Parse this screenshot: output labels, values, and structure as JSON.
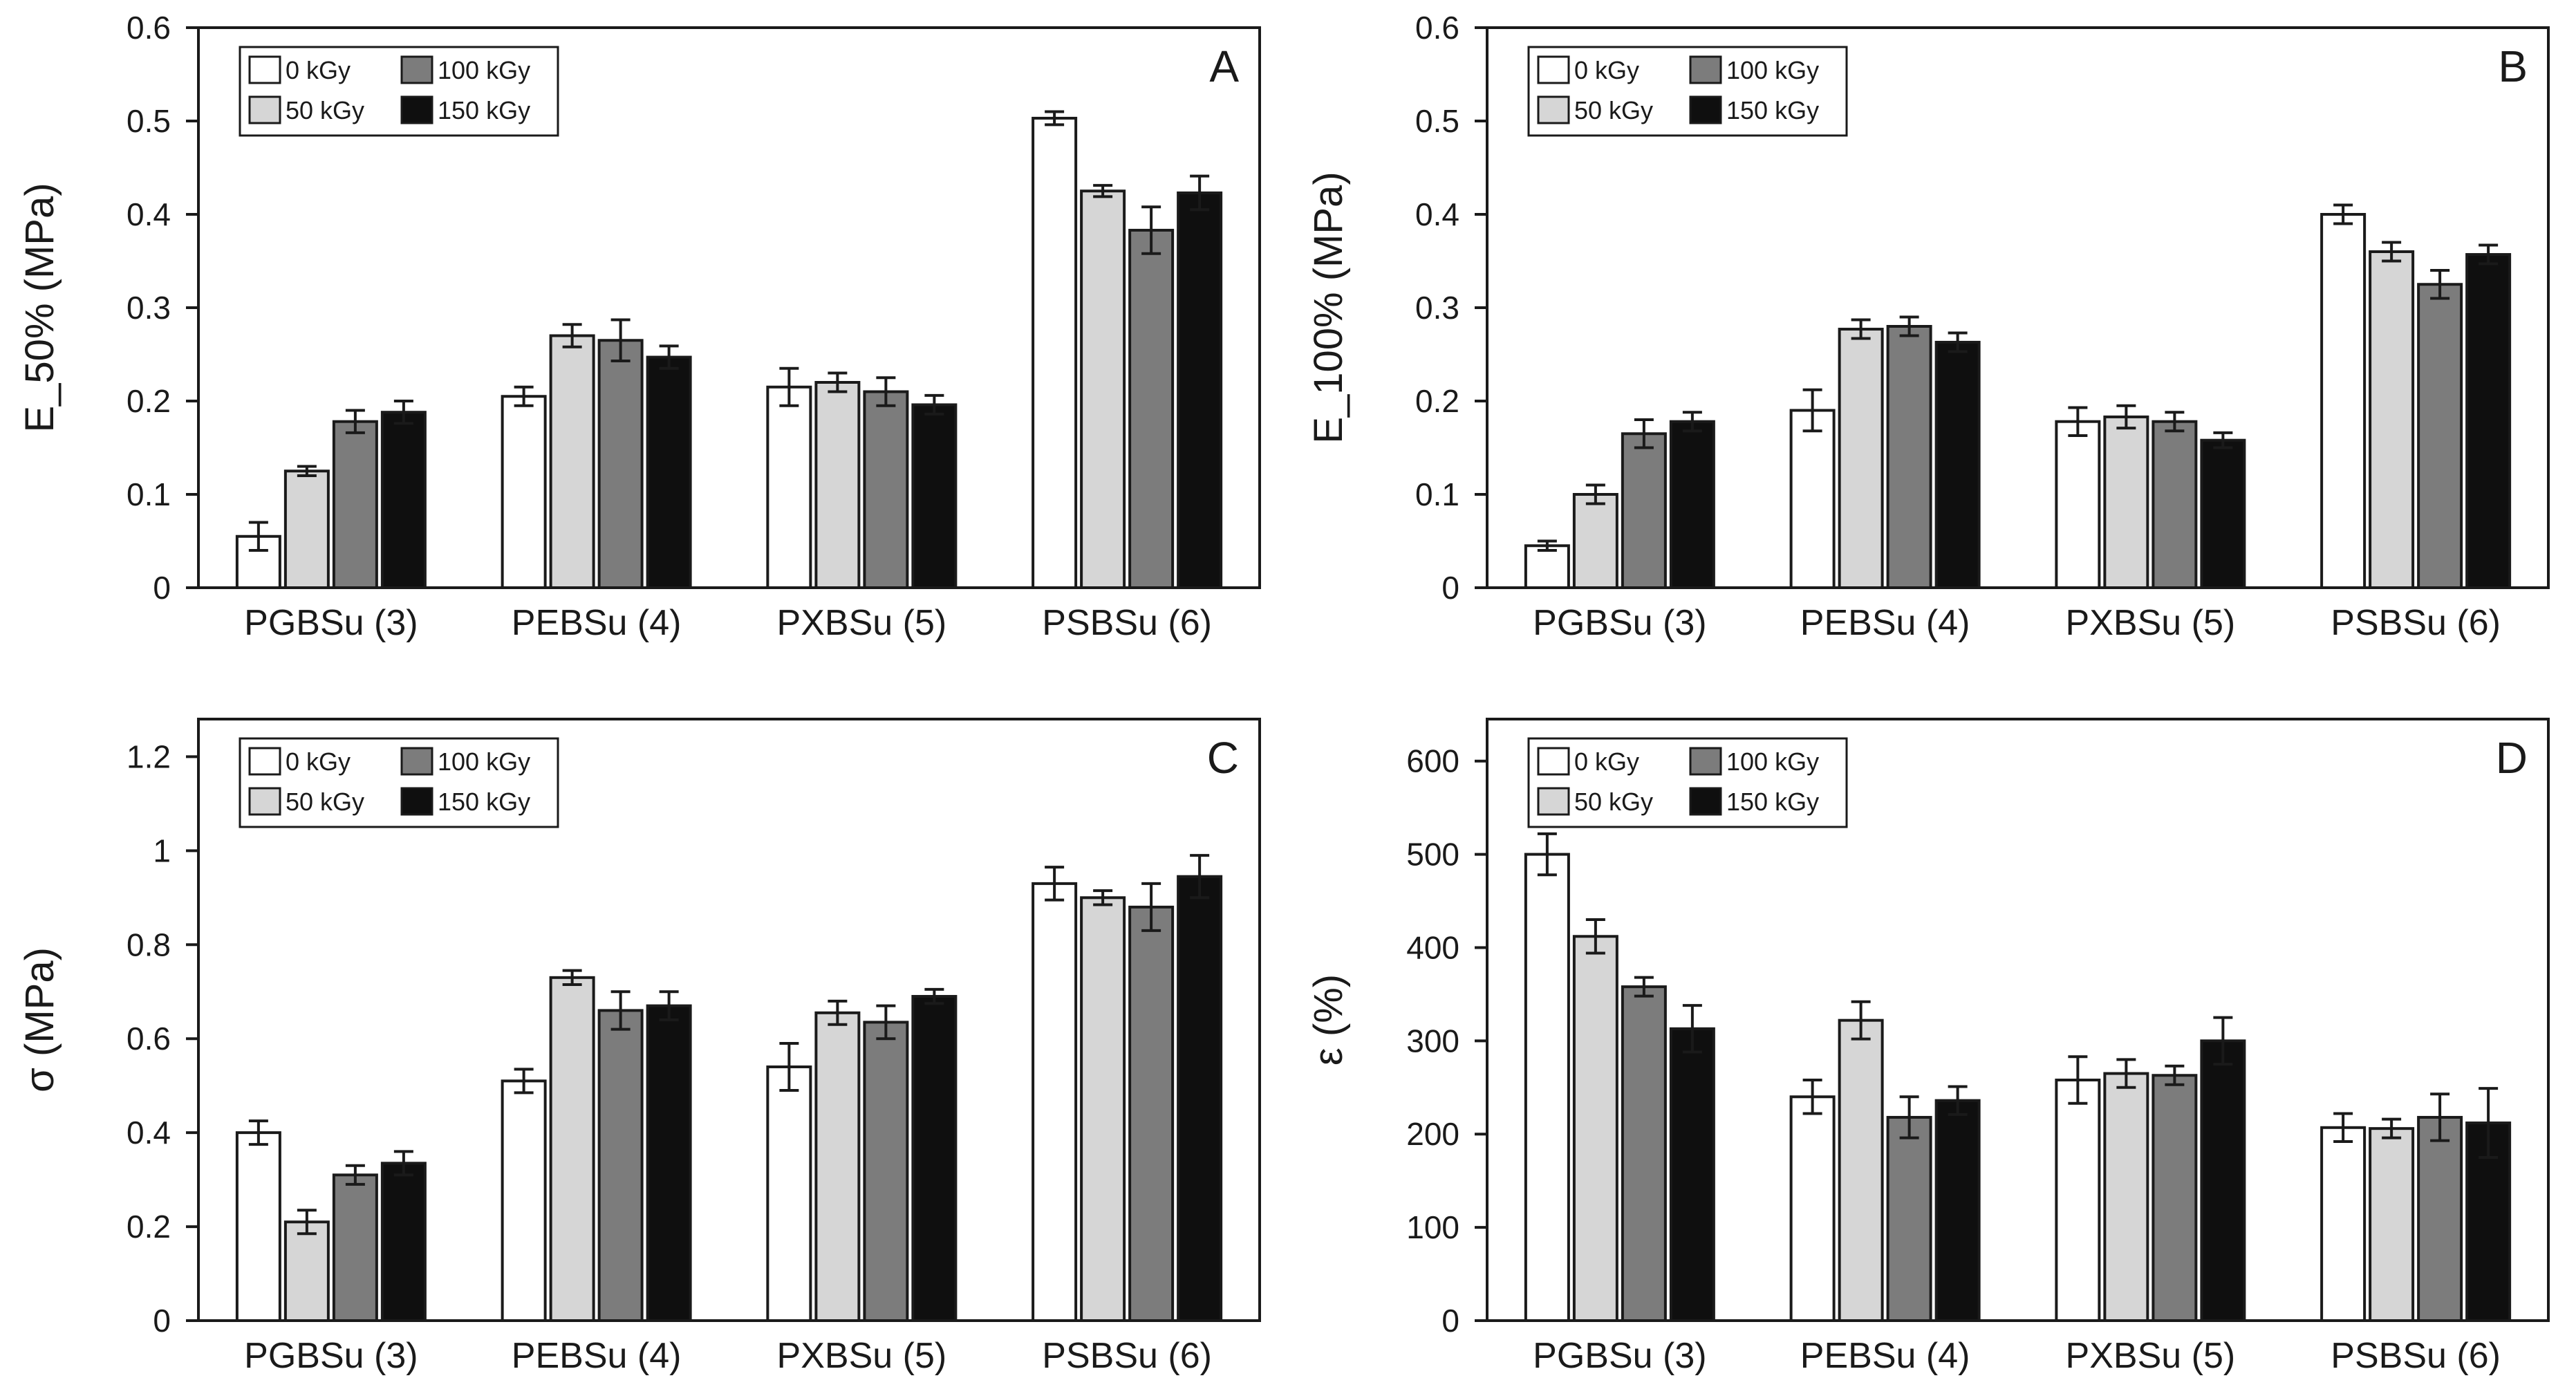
{
  "chart_data": [
    {
      "panel": "A",
      "type": "bar",
      "ylabel": "E_50% (MPa)",
      "xlabel": "",
      "ylim": [
        0,
        0.6
      ],
      "yticks": [
        0,
        0.1,
        0.2,
        0.3,
        0.4,
        0.5,
        0.6
      ],
      "ytick_labels": [
        "0",
        "0.1",
        "0.2",
        "0.3",
        "0.4",
        "0.5",
        "0.6"
      ],
      "categories": [
        "PGBSu (3)",
        "PEBSu (4)",
        "PXBSu (5)",
        "PSBSu (6)"
      ],
      "legend": "top-left",
      "series": [
        {
          "name": "0 kGy",
          "color": "#ffffff",
          "values": [
            0.055,
            0.205,
            0.215,
            0.503
          ],
          "errors": [
            0.015,
            0.01,
            0.02,
            0.007
          ]
        },
        {
          "name": "50 kGy",
          "color": "#d6d6d6",
          "values": [
            0.125,
            0.27,
            0.22,
            0.425
          ],
          "errors": [
            0.005,
            0.012,
            0.01,
            0.006
          ]
        },
        {
          "name": "100 kGy",
          "color": "#7c7c7c",
          "values": [
            0.178,
            0.265,
            0.21,
            0.383
          ],
          "errors": [
            0.012,
            0.022,
            0.015,
            0.025
          ]
        },
        {
          "name": "150 kGy",
          "color": "#0f0f0f",
          "values": [
            0.188,
            0.247,
            0.196,
            0.423
          ],
          "errors": [
            0.012,
            0.012,
            0.01,
            0.018
          ]
        }
      ]
    },
    {
      "panel": "B",
      "type": "bar",
      "ylabel": "E_100% (MPa)",
      "xlabel": "",
      "ylim": [
        0,
        0.6
      ],
      "yticks": [
        0,
        0.1,
        0.2,
        0.3,
        0.4,
        0.5,
        0.6
      ],
      "ytick_labels": [
        "0",
        "0.1",
        "0.2",
        "0.3",
        "0.4",
        "0.5",
        "0.6"
      ],
      "categories": [
        "PGBSu (3)",
        "PEBSu (4)",
        "PXBSu (5)",
        "PSBSu (6)"
      ],
      "legend": "top-left",
      "series": [
        {
          "name": "0 kGy",
          "color": "#ffffff",
          "values": [
            0.045,
            0.19,
            0.178,
            0.4
          ],
          "errors": [
            0.005,
            0.022,
            0.015,
            0.01
          ]
        },
        {
          "name": "50 kGy",
          "color": "#d6d6d6",
          "values": [
            0.1,
            0.277,
            0.183,
            0.36
          ],
          "errors": [
            0.01,
            0.01,
            0.012,
            0.01
          ]
        },
        {
          "name": "100 kGy",
          "color": "#7c7c7c",
          "values": [
            0.165,
            0.28,
            0.178,
            0.325
          ],
          "errors": [
            0.015,
            0.01,
            0.01,
            0.015
          ]
        },
        {
          "name": "150 kGy",
          "color": "#0f0f0f",
          "values": [
            0.178,
            0.263,
            0.158,
            0.357
          ],
          "errors": [
            0.01,
            0.01,
            0.008,
            0.01
          ]
        }
      ]
    },
    {
      "panel": "C",
      "type": "bar",
      "ylabel": "σ (MPa)",
      "xlabel": "",
      "ylim": [
        0,
        1.28
      ],
      "yticks": [
        0,
        0.2,
        0.4,
        0.6,
        0.8,
        1.0,
        1.2
      ],
      "ytick_labels": [
        "0",
        "0.2",
        "0.4",
        "0.6",
        "0.8",
        "1",
        "1.2"
      ],
      "categories": [
        "PGBSu (3)",
        "PEBSu (4)",
        "PXBSu (5)",
        "PSBSu (6)"
      ],
      "legend": "top-left",
      "series": [
        {
          "name": "0 kGy",
          "color": "#ffffff",
          "values": [
            0.4,
            0.51,
            0.54,
            0.93
          ],
          "errors": [
            0.025,
            0.025,
            0.05,
            0.035
          ]
        },
        {
          "name": "50 kGy",
          "color": "#d6d6d6",
          "values": [
            0.21,
            0.73,
            0.655,
            0.9
          ],
          "errors": [
            0.025,
            0.015,
            0.025,
            0.015
          ]
        },
        {
          "name": "100 kGy",
          "color": "#7c7c7c",
          "values": [
            0.31,
            0.66,
            0.635,
            0.88
          ],
          "errors": [
            0.02,
            0.04,
            0.035,
            0.05
          ]
        },
        {
          "name": "150 kGy",
          "color": "#0f0f0f",
          "values": [
            0.335,
            0.67,
            0.69,
            0.945
          ],
          "errors": [
            0.025,
            0.03,
            0.015,
            0.045
          ]
        }
      ]
    },
    {
      "panel": "D",
      "type": "bar",
      "ylabel": "ε (%)",
      "xlabel": "",
      "ylim": [
        0,
        645
      ],
      "yticks": [
        0,
        100,
        200,
        300,
        400,
        500,
        600
      ],
      "ytick_labels": [
        "0",
        "100",
        "200",
        "300",
        "400",
        "500",
        "600"
      ],
      "categories": [
        "PGBSu (3)",
        "PEBSu (4)",
        "PXBSu (5)",
        "PSBSu (6)"
      ],
      "legend": "top-left",
      "series": [
        {
          "name": "0 kGy",
          "color": "#ffffff",
          "values": [
            500,
            240,
            258,
            207
          ],
          "errors": [
            22,
            18,
            25,
            15
          ]
        },
        {
          "name": "50 kGy",
          "color": "#d6d6d6",
          "values": [
            412,
            322,
            265,
            206
          ],
          "errors": [
            18,
            20,
            15,
            10
          ]
        },
        {
          "name": "100 kGy",
          "color": "#7c7c7c",
          "values": [
            358,
            218,
            263,
            218
          ],
          "errors": [
            10,
            22,
            10,
            25
          ]
        },
        {
          "name": "150 kGy",
          "color": "#0f0f0f",
          "values": [
            313,
            236,
            300,
            212
          ],
          "errors": [
            25,
            15,
            25,
            37
          ]
        }
      ]
    }
  ]
}
